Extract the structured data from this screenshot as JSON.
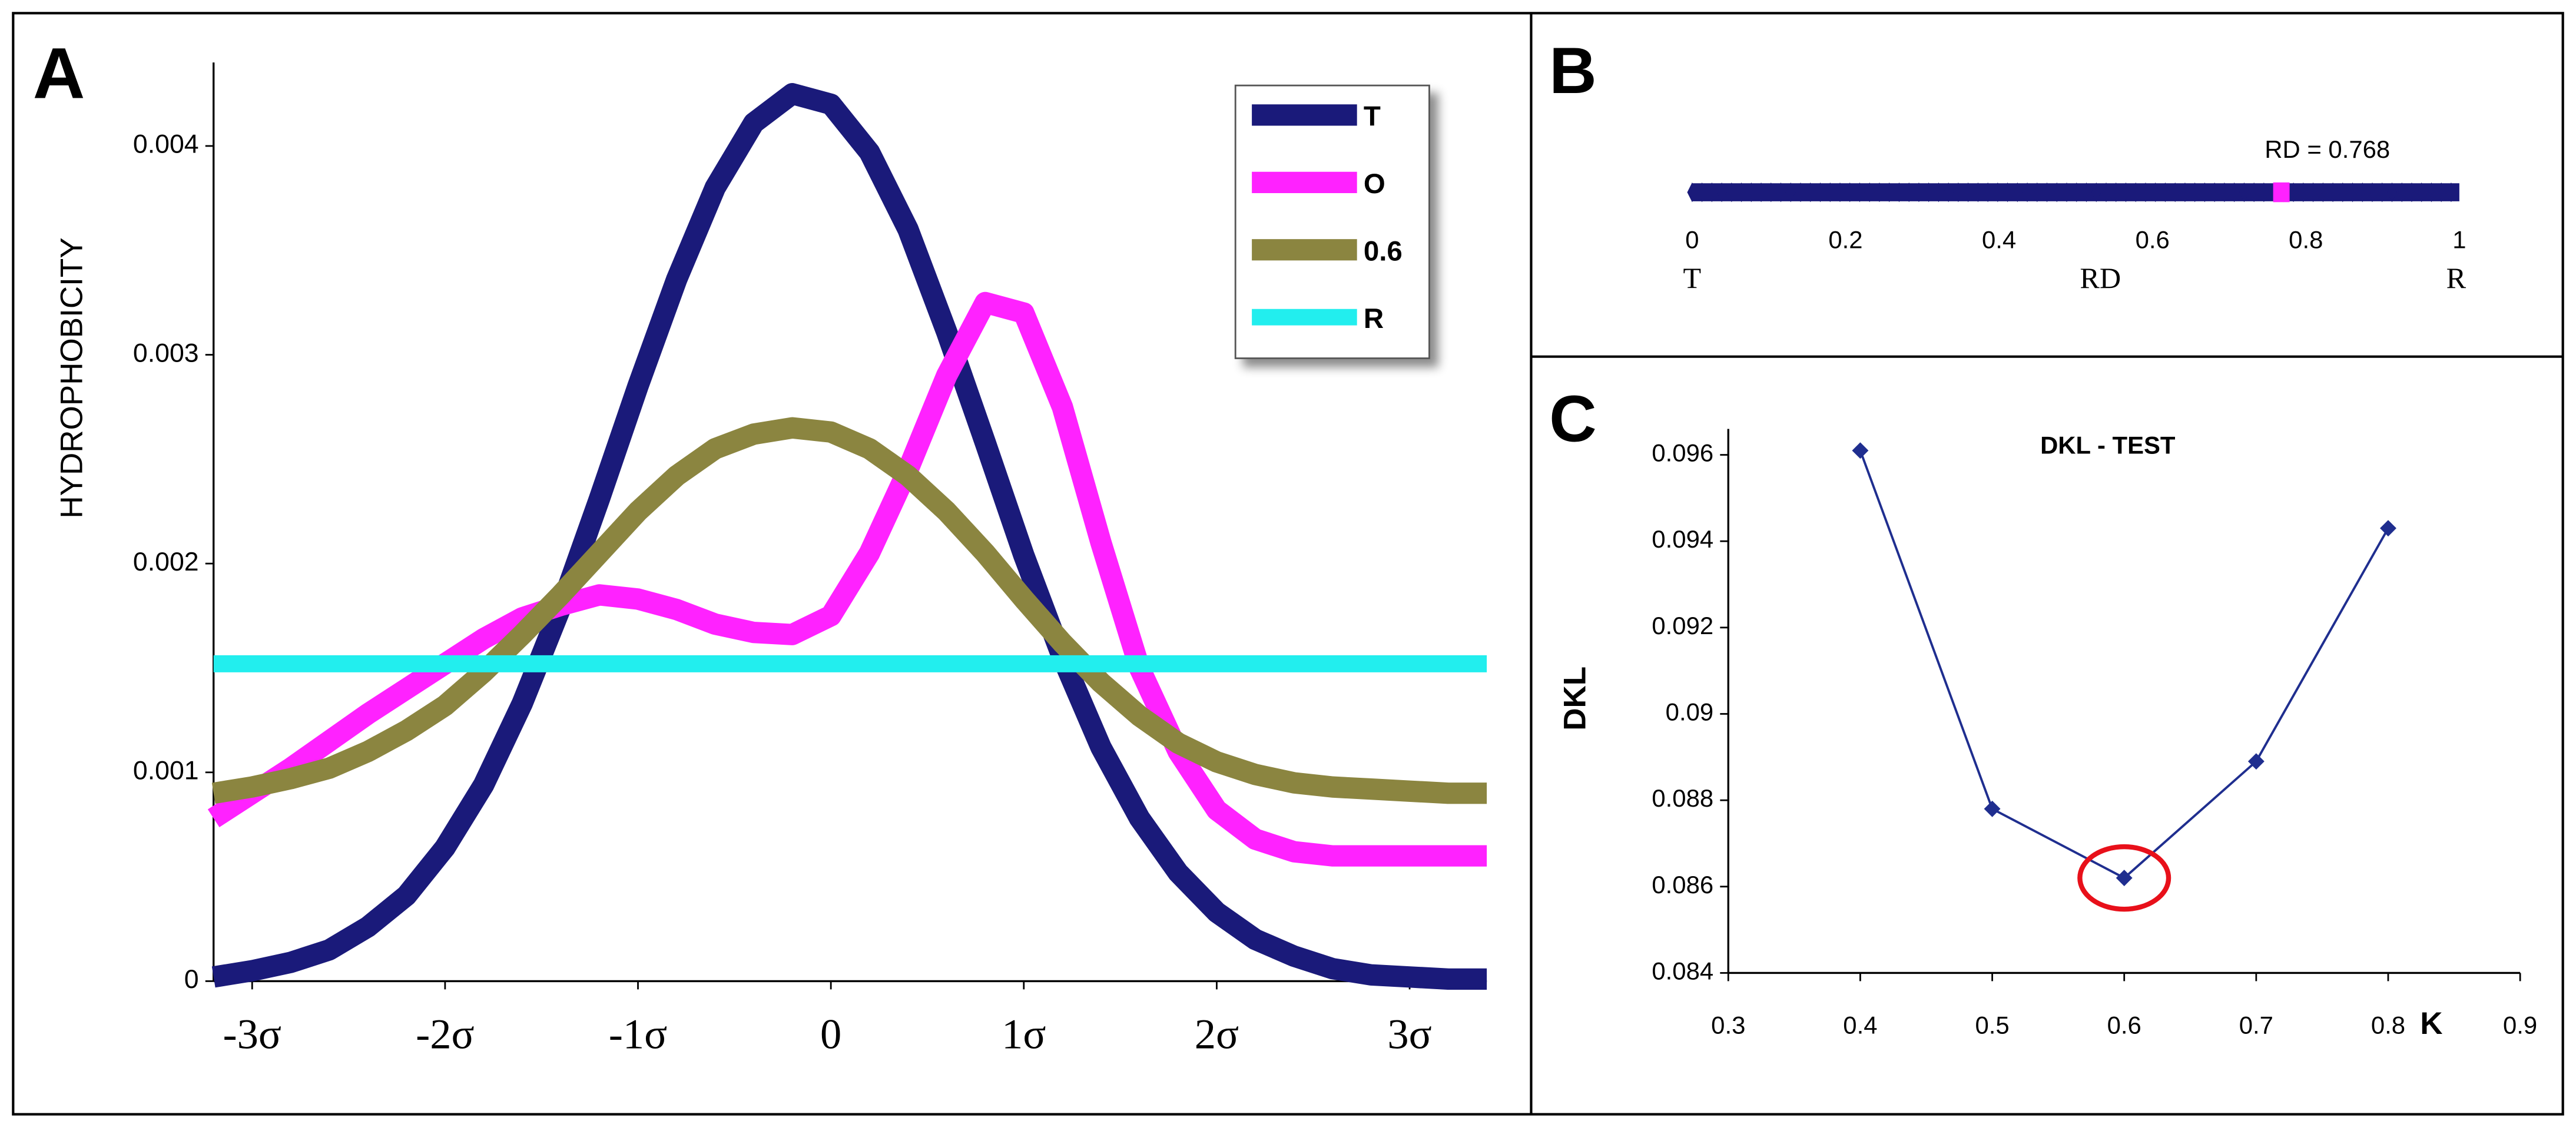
{
  "chart_data": [
    {
      "type": "line",
      "panel": "A",
      "ylabel": "HYDROPHOBICITY",
      "x": [
        -3.2,
        -3,
        -2.8,
        -2.6,
        -2.4,
        -2.2,
        -2,
        -1.8,
        -1.6,
        -1.4,
        -1.2,
        -1,
        -0.8,
        -0.6,
        -0.4,
        -0.2,
        0,
        0.2,
        0.4,
        0.6,
        0.8,
        1,
        1.2,
        1.4,
        1.6,
        1.8,
        2,
        2.2,
        2.4,
        2.6,
        2.8,
        3,
        3.2,
        3.4
      ],
      "series": [
        {
          "name": "T",
          "color": "#1a1a7a",
          "values": [
            2e-05,
            5e-05,
            9e-05,
            0.00015,
            0.00026,
            0.00041,
            0.00064,
            0.00094,
            0.00133,
            0.00179,
            0.00231,
            0.00285,
            0.00336,
            0.0038,
            0.00411,
            0.00425,
            0.0042,
            0.00397,
            0.0036,
            0.00311,
            0.00258,
            0.00204,
            0.00155,
            0.00112,
            0.00078,
            0.00052,
            0.00033,
            0.0002,
            0.00012,
            6e-05,
            3e-05,
            2e-05,
            1e-05,
            1e-05
          ]
        },
        {
          "name": "O",
          "color": "#ff22ff",
          "values": [
            0.00078,
            0.0009,
            0.00102,
            0.00115,
            0.00128,
            0.0014,
            0.00152,
            0.00164,
            0.00174,
            0.0018,
            0.00185,
            0.00183,
            0.00178,
            0.00171,
            0.00167,
            0.00166,
            0.00175,
            0.00205,
            0.00245,
            0.0029,
            0.00325,
            0.0032,
            0.00275,
            0.0021,
            0.0015,
            0.0011,
            0.00082,
            0.00068,
            0.00062,
            0.0006,
            0.0006,
            0.0006,
            0.0006,
            0.0006
          ]
        },
        {
          "name": "0.6",
          "color": "#8b8540",
          "values": [
            0.0009,
            0.00093,
            0.00097,
            0.00102,
            0.0011,
            0.0012,
            0.00132,
            0.00148,
            0.00166,
            0.00185,
            0.00205,
            0.00225,
            0.00242,
            0.00255,
            0.00262,
            0.00265,
            0.00263,
            0.00255,
            0.00242,
            0.00225,
            0.00205,
            0.00183,
            0.00162,
            0.00143,
            0.00127,
            0.00114,
            0.00105,
            0.00099,
            0.00095,
            0.00093,
            0.00092,
            0.00091,
            0.0009,
            0.0009
          ]
        },
        {
          "name": "R",
          "color": "#22eeee",
          "values": [
            0.00152,
            0.00152,
            0.00152,
            0.00152,
            0.00152,
            0.00152,
            0.00152,
            0.00152,
            0.00152,
            0.00152,
            0.00152,
            0.00152,
            0.00152,
            0.00152,
            0.00152,
            0.00152,
            0.00152,
            0.00152,
            0.00152,
            0.00152,
            0.00152,
            0.00152,
            0.00152,
            0.00152,
            0.00152,
            0.00152,
            0.00152,
            0.00152,
            0.00152,
            0.00152,
            0.00152,
            0.00152,
            0.00152,
            0.00152
          ]
        }
      ],
      "xlim": [
        -3.2,
        3.4
      ],
      "xticks": [
        {
          "value": -3,
          "label": "-3σ"
        },
        {
          "value": -2,
          "label": "-2σ"
        },
        {
          "value": -1,
          "label": "-1σ"
        },
        0,
        {
          "value": 1,
          "label": "1σ"
        },
        {
          "value": 2,
          "label": "2σ"
        },
        {
          "value": 3,
          "label": "3σ"
        }
      ],
      "ylim": [
        0,
        0.0044
      ],
      "yticks": [
        0,
        0.001,
        0.002,
        0.003,
        0.004
      ],
      "legend": "upper right"
    },
    {
      "type": "strip",
      "panel": "B",
      "xlabel": "RD",
      "end_labels": [
        "T",
        "R"
      ],
      "values": [
        0.768
      ],
      "value_labels": [
        "RD = 0.768"
      ],
      "color": "#ff22ff",
      "bar_color": "#1a1a7a",
      "xlim": [
        0,
        1
      ],
      "xticks": [
        0,
        0.2,
        0.4,
        0.6,
        0.8,
        1
      ]
    },
    {
      "type": "line",
      "panel": "C",
      "title": "DKL -  TEST",
      "xlabel": "K",
      "ylabel": "DKL",
      "x": [
        0.4,
        0.5,
        0.6,
        0.7,
        0.8
      ],
      "series": [
        {
          "color": "#1f2e8f",
          "values": [
            0.0961,
            0.0878,
            0.0862,
            0.0889,
            0.0943
          ]
        }
      ],
      "marker": "diamond",
      "xlim": [
        0.3,
        0.9
      ],
      "xticks": [
        0.3,
        0.4,
        0.5,
        0.6,
        0.7,
        0.8,
        0.9
      ],
      "ylim": [
        0.084,
        0.0966
      ],
      "yticks": [
        0.084,
        0.086,
        0.088,
        0.09,
        0.092,
        0.094,
        0.096
      ]
    }
  ]
}
